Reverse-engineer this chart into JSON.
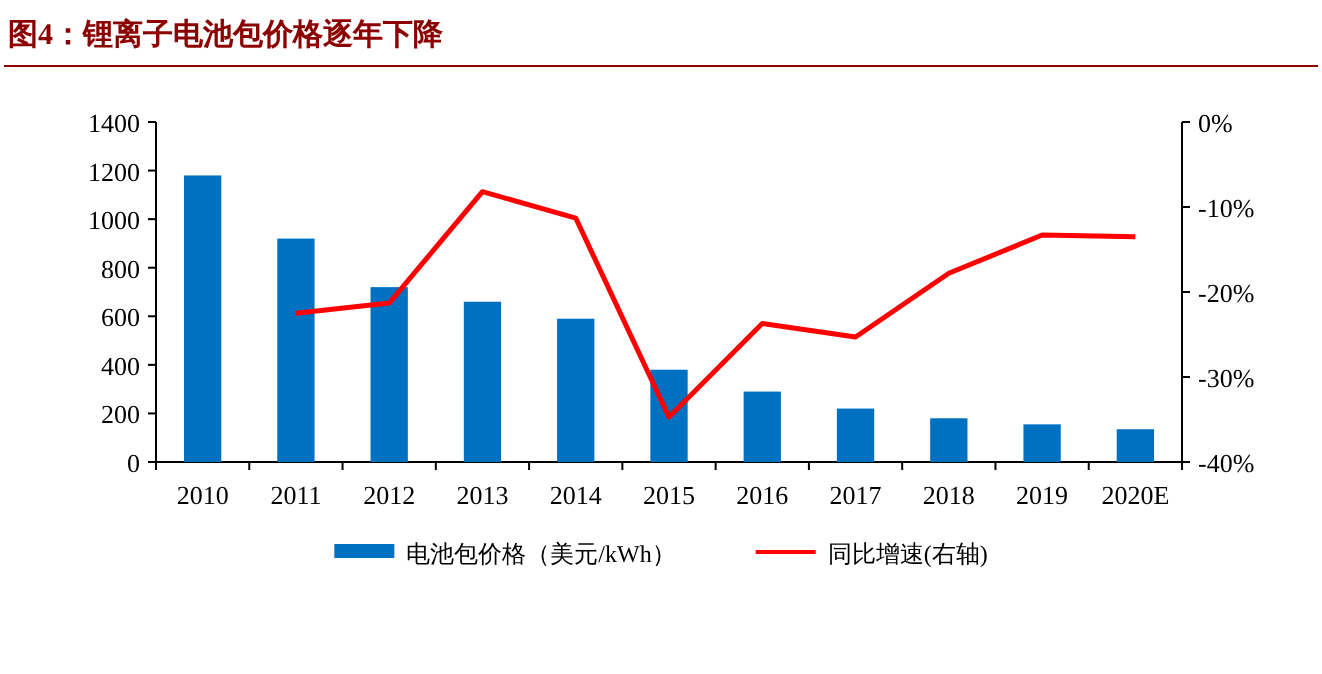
{
  "chart_data": {
    "type": "bar",
    "title": "图4：锂离子电池包价格逐年下降",
    "categories": [
      "2010",
      "2011",
      "2012",
      "2013",
      "2014",
      "2015",
      "2016",
      "2017",
      "2018",
      "2019",
      "2020E"
    ],
    "series": [
      {
        "name": "电池包价格（美元/kWh）",
        "color": "#0070c0",
        "values": [
          1180,
          920,
          720,
          660,
          590,
          380,
          290,
          220,
          180,
          155,
          135
        ]
      },
      {
        "name": "同比增速(右轴)",
        "type": "line",
        "axis": "y2",
        "color": "#ff0000",
        "values": [
          null,
          -22.5,
          -21.3,
          -8.2,
          -11.3,
          -34.7,
          -23.7,
          -25.3,
          -17.8,
          -13.3,
          -13.5
        ]
      }
    ],
    "ylim": [
      0,
      1400
    ],
    "yticks": [
      0,
      200,
      400,
      600,
      800,
      1000,
      1200,
      1400
    ],
    "y2lim": [
      -40,
      0
    ],
    "y2ticks": [
      {
        "value": -40,
        "label": "-40%"
      },
      {
        "value": -30,
        "label": "-30%"
      },
      {
        "value": -20,
        "label": "-20%"
      },
      {
        "value": -10,
        "label": "-10%"
      },
      {
        "value": 0,
        "label": "0%"
      }
    ],
    "legend": "bottom"
  }
}
